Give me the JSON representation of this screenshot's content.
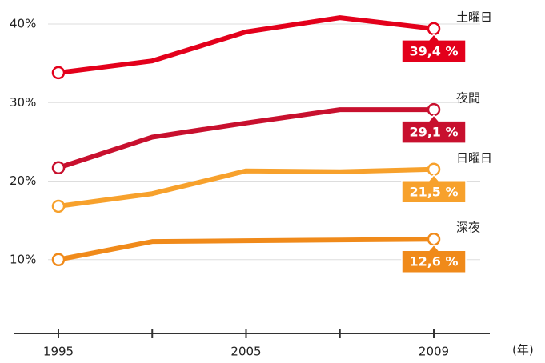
{
  "chart_data": {
    "type": "line",
    "categories": [
      "1995",
      null,
      "2005",
      null,
      "2009"
    ],
    "x_unit": "(年)",
    "ylim": [
      0,
      40
    ],
    "yticks": [
      {
        "value": 10,
        "label": "10%"
      },
      {
        "value": 20,
        "label": "20%"
      },
      {
        "value": 30,
        "label": "30%"
      },
      {
        "value": 40,
        "label": "40%"
      }
    ],
    "grid": true,
    "series": [
      {
        "name": "土曜日",
        "color": "#e3001b",
        "values": [
          33.8,
          35.3,
          39.0,
          40.8,
          39.4
        ],
        "value_labels": [
          null,
          null,
          null,
          null,
          "39,4 %"
        ]
      },
      {
        "name": "夜間",
        "color": "#c8102e",
        "values": [
          21.7,
          25.6,
          27.4,
          29.1,
          29.1
        ],
        "value_labels": [
          null,
          null,
          null,
          null,
          "29,1 %"
        ]
      },
      {
        "name": "日曜日",
        "color": "#f7a12c",
        "values": [
          16.8,
          18.4,
          21.3,
          21.2,
          21.5
        ],
        "value_labels": [
          null,
          null,
          null,
          null,
          "21,5 %"
        ]
      },
      {
        "name": "深夜",
        "color": "#f08a1a",
        "values": [
          10.0,
          12.3,
          12.4,
          12.5,
          12.6
        ],
        "value_labels": [
          null,
          null,
          null,
          null,
          "12,6 %"
        ]
      }
    ]
  }
}
